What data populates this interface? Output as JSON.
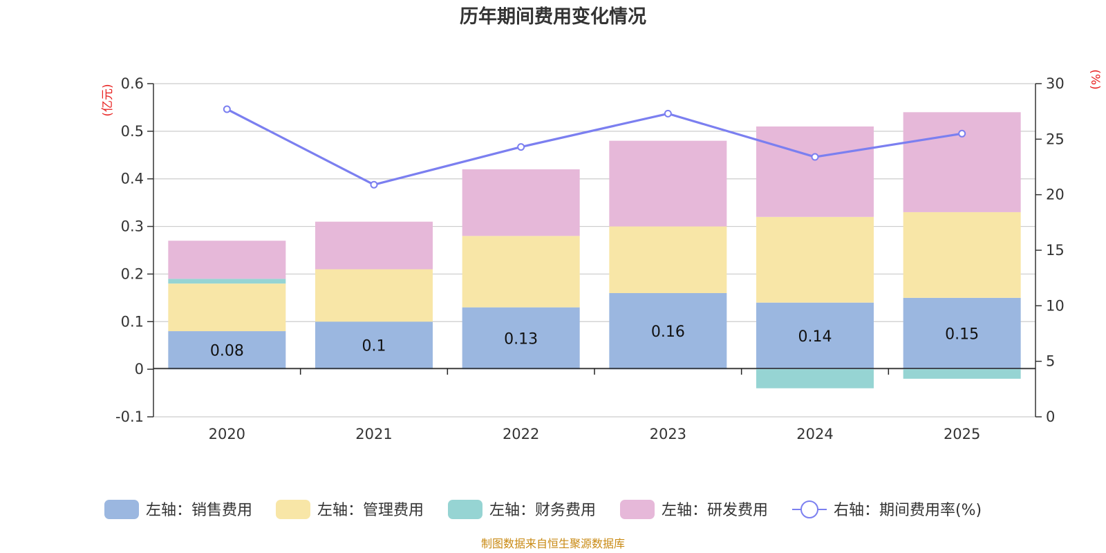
{
  "chart_data": {
    "type": "bar",
    "stacked": true,
    "title": "历年期间费用变化情况",
    "categories": [
      "2020",
      "2021",
      "2022",
      "2023",
      "2024",
      "2025"
    ],
    "y_left": {
      "unit": "(亿元)",
      "range": [
        -0.1,
        0.6
      ],
      "ticks": [
        "-0.1",
        "0",
        "0.1",
        "0.2",
        "0.3",
        "0.4",
        "0.5",
        "0.6"
      ],
      "tick_values": [
        -0.1,
        0,
        0.1,
        0.2,
        0.3,
        0.4,
        0.5,
        0.6
      ]
    },
    "y_right": {
      "unit": "(%)",
      "range": [
        0,
        30
      ],
      "ticks": [
        "0",
        "5",
        "10",
        "15",
        "20",
        "25",
        "30"
      ],
      "tick_values": [
        0,
        5,
        10,
        15,
        20,
        25,
        30
      ]
    },
    "series": [
      {
        "name": "左轴：销售费用",
        "type": "bar",
        "axis": "left",
        "color": "#9bb7e0",
        "values": [
          0.08,
          0.1,
          0.13,
          0.16,
          0.14,
          0.15
        ],
        "labels": [
          "0.08",
          "0.1",
          "0.13",
          "0.16",
          "0.14",
          "0.15"
        ]
      },
      {
        "name": "左轴：管理费用",
        "type": "bar",
        "axis": "left",
        "color": "#f8e6a7",
        "values": [
          0.1,
          0.11,
          0.15,
          0.14,
          0.18,
          0.18
        ]
      },
      {
        "name": "左轴：财务费用",
        "type": "bar",
        "axis": "left",
        "color": "#96d4d3",
        "values": [
          0.01,
          0.0,
          0.0,
          0.0,
          -0.04,
          -0.02
        ]
      },
      {
        "name": "左轴：研发费用",
        "type": "bar",
        "axis": "left",
        "color": "#e6b8d9",
        "values": [
          0.08,
          0.1,
          0.14,
          0.18,
          0.19,
          0.21
        ]
      },
      {
        "name": "右轴：期间费用率(%)",
        "type": "line",
        "axis": "right",
        "color": "#7b7ff0",
        "values": [
          27.7,
          20.9,
          24.3,
          27.3,
          23.4,
          25.5
        ]
      }
    ],
    "legend_position": "bottom",
    "grid": true
  },
  "colors": {
    "left_unit": "#e8201f",
    "right_unit": "#e8201f",
    "source": "#c98a14"
  },
  "source": "制图数据来自恒生聚源数据库"
}
